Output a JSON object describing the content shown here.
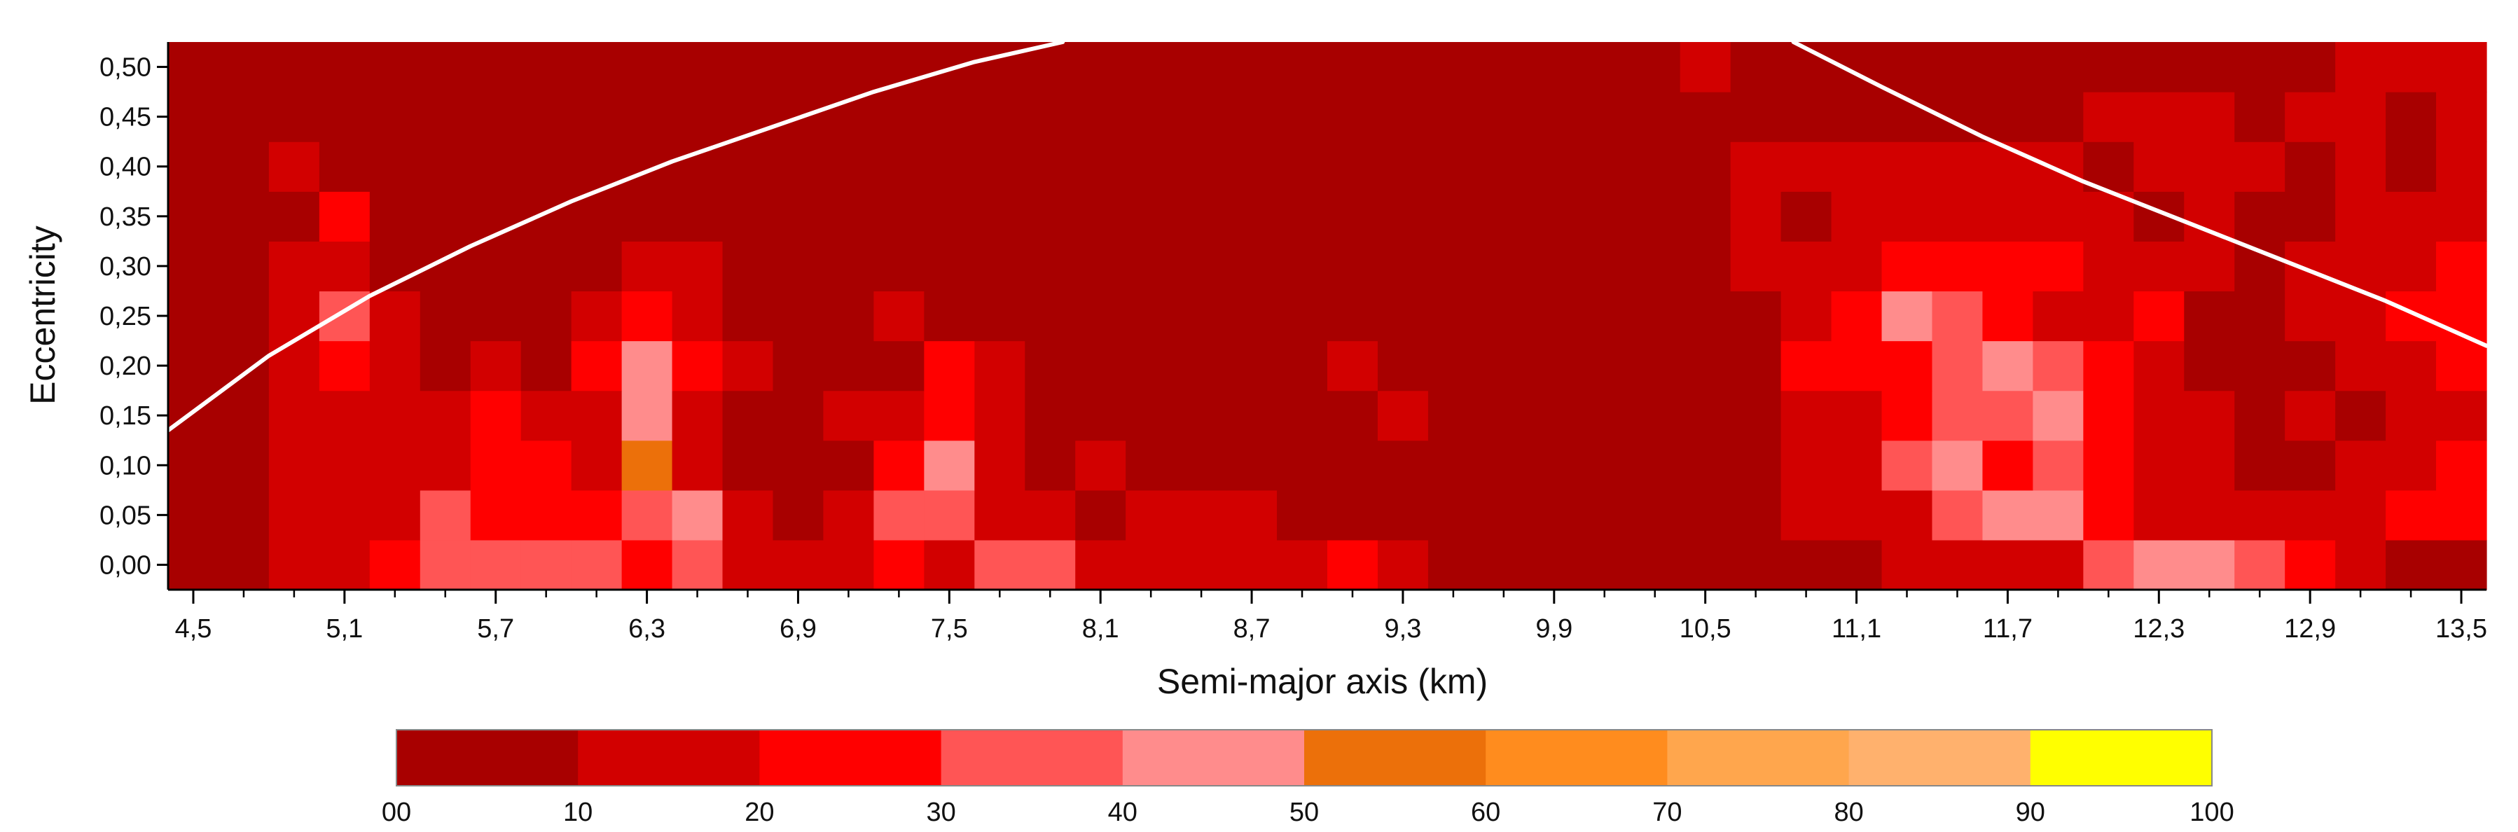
{
  "chart_data": {
    "type": "heatmap",
    "xlabel": "Semi-major axis (km)",
    "ylabel": "Eccentricity",
    "x_tick_labels": [
      "4,5",
      "5,1",
      "5,7",
      "6,3",
      "6,9",
      "7,5",
      "8,1",
      "8,7",
      "9,3",
      "9,9",
      "10,5",
      "11,1",
      "11,7",
      "12,3",
      "12,9",
      "13,5"
    ],
    "y_tick_labels": [
      "0,00",
      "0,05",
      "0,10",
      "0,15",
      "0,20",
      "0,25",
      "0,30",
      "0,35",
      "0,40",
      "0,45",
      "0,50"
    ],
    "colorbar": {
      "tick_labels": [
        "00",
        "10",
        "20",
        "30",
        "40",
        "50",
        "60",
        "70",
        "80",
        "90",
        "100"
      ],
      "colors": [
        "#a80000",
        "#d20000",
        "#ff0000",
        "#ff5555",
        "#ff8c8c",
        "#ec700a",
        "#ff8c1e",
        "#ffa64d",
        "#ffb16d",
        "#ffff00"
      ]
    },
    "x_range": [
      4.4,
      13.6
    ],
    "y_range": [
      -0.025,
      0.525
    ],
    "x_bins": {
      "start": 4.5,
      "step": 0.2,
      "count": 46
    },
    "y_bins": {
      "start": 0.0,
      "step": 0.05,
      "count": 11
    },
    "z_bins": [
      0,
      10,
      20,
      30,
      40,
      50,
      60,
      70,
      80,
      90,
      100
    ],
    "z_rows_from_bottom": [
      [
        0,
        0,
        1,
        1,
        2,
        3,
        3,
        3,
        3,
        2,
        3,
        1,
        1,
        1,
        2,
        1,
        3,
        3,
        1,
        1,
        1,
        1,
        1,
        2,
        1,
        0,
        0,
        0,
        0,
        0,
        0,
        0,
        0,
        0,
        1,
        1,
        1,
        1,
        3,
        4,
        4,
        3,
        2,
        1,
        0,
        0
      ],
      [
        0,
        0,
        1,
        1,
        1,
        3,
        2,
        2,
        2,
        3,
        4,
        1,
        0,
        1,
        3,
        3,
        1,
        1,
        0,
        1,
        1,
        1,
        0,
        0,
        0,
        0,
        0,
        0,
        0,
        0,
        0,
        0,
        1,
        1,
        1,
        3,
        4,
        4,
        2,
        1,
        1,
        1,
        1,
        1,
        2,
        2
      ],
      [
        0,
        0,
        1,
        1,
        1,
        1,
        2,
        2,
        1,
        5,
        1,
        0,
        0,
        0,
        2,
        4,
        1,
        0,
        1,
        0,
        0,
        0,
        0,
        0,
        0,
        0,
        0,
        0,
        0,
        0,
        0,
        0,
        1,
        1,
        3,
        4,
        2,
        3,
        2,
        1,
        1,
        0,
        0,
        1,
        1,
        2
      ],
      [
        0,
        0,
        1,
        1,
        1,
        1,
        2,
        1,
        1,
        4,
        1,
        0,
        0,
        1,
        1,
        2,
        1,
        0,
        0,
        0,
        0,
        0,
        0,
        0,
        1,
        0,
        0,
        0,
        0,
        0,
        0,
        0,
        1,
        1,
        2,
        3,
        3,
        4,
        2,
        1,
        1,
        0,
        1,
        0,
        1,
        1
      ],
      [
        0,
        0,
        1,
        2,
        1,
        0,
        1,
        0,
        2,
        4,
        2,
        1,
        0,
        0,
        0,
        2,
        1,
        0,
        0,
        0,
        0,
        0,
        0,
        1,
        0,
        0,
        0,
        0,
        0,
        0,
        0,
        0,
        2,
        2,
        2,
        3,
        4,
        3,
        2,
        1,
        0,
        0,
        0,
        1,
        1,
        2
      ],
      [
        0,
        0,
        1,
        3,
        1,
        0,
        0,
        0,
        1,
        2,
        1,
        0,
        0,
        0,
        1,
        0,
        0,
        0,
        0,
        0,
        0,
        0,
        0,
        0,
        0,
        0,
        0,
        0,
        0,
        0,
        0,
        0,
        1,
        2,
        4,
        3,
        2,
        1,
        1,
        2,
        0,
        0,
        1,
        1,
        2,
        2
      ],
      [
        0,
        0,
        1,
        1,
        0,
        0,
        0,
        0,
        0,
        1,
        1,
        0,
        0,
        0,
        0,
        0,
        0,
        0,
        0,
        0,
        0,
        0,
        0,
        0,
        0,
        0,
        0,
        0,
        0,
        0,
        0,
        1,
        1,
        1,
        2,
        2,
        2,
        2,
        1,
        1,
        1,
        0,
        1,
        1,
        1,
        2
      ],
      [
        0,
        0,
        0,
        2,
        0,
        0,
        0,
        0,
        0,
        0,
        0,
        0,
        0,
        0,
        0,
        0,
        0,
        0,
        0,
        0,
        0,
        0,
        0,
        0,
        0,
        0,
        0,
        0,
        0,
        0,
        0,
        1,
        0,
        1,
        1,
        1,
        1,
        1,
        1,
        0,
        1,
        0,
        0,
        1,
        1,
        1
      ],
      [
        0,
        0,
        1,
        0,
        0,
        0,
        0,
        0,
        0,
        0,
        0,
        0,
        0,
        0,
        0,
        0,
        0,
        0,
        0,
        0,
        0,
        0,
        0,
        0,
        0,
        0,
        0,
        0,
        0,
        0,
        0,
        1,
        1,
        1,
        1,
        1,
        1,
        1,
        0,
        1,
        1,
        1,
        0,
        1,
        0,
        1
      ],
      [
        0,
        0,
        0,
        0,
        0,
        0,
        0,
        0,
        0,
        0,
        0,
        0,
        0,
        0,
        0,
        0,
        0,
        0,
        0,
        0,
        0,
        0,
        0,
        0,
        0,
        0,
        0,
        0,
        0,
        0,
        0,
        0,
        0,
        0,
        0,
        0,
        0,
        0,
        1,
        1,
        1,
        0,
        1,
        1,
        0,
        1
      ],
      [
        0,
        0,
        0,
        0,
        0,
        0,
        0,
        0,
        0,
        0,
        0,
        0,
        0,
        0,
        0,
        0,
        0,
        0,
        0,
        0,
        0,
        0,
        0,
        0,
        0,
        0,
        0,
        0,
        0,
        0,
        1,
        0,
        0,
        0,
        0,
        0,
        0,
        0,
        0,
        0,
        0,
        0,
        0,
        1,
        1,
        1
      ]
    ],
    "overlay_curves": [
      {
        "color": "#ffffff",
        "x": [
          4.4,
          4.8,
          5.2,
          5.6,
          6.0,
          6.4,
          6.8,
          7.2,
          7.6,
          7.95
        ],
        "y": [
          0.135,
          0.21,
          0.27,
          0.32,
          0.365,
          0.405,
          0.44,
          0.475,
          0.505,
          0.525
        ]
      },
      {
        "color": "#ffffff",
        "x": [
          10.85,
          11.2,
          11.6,
          12.0,
          12.4,
          12.8,
          13.2,
          13.6
        ],
        "y": [
          0.525,
          0.48,
          0.43,
          0.385,
          0.345,
          0.305,
          0.265,
          0.22
        ]
      }
    ]
  }
}
